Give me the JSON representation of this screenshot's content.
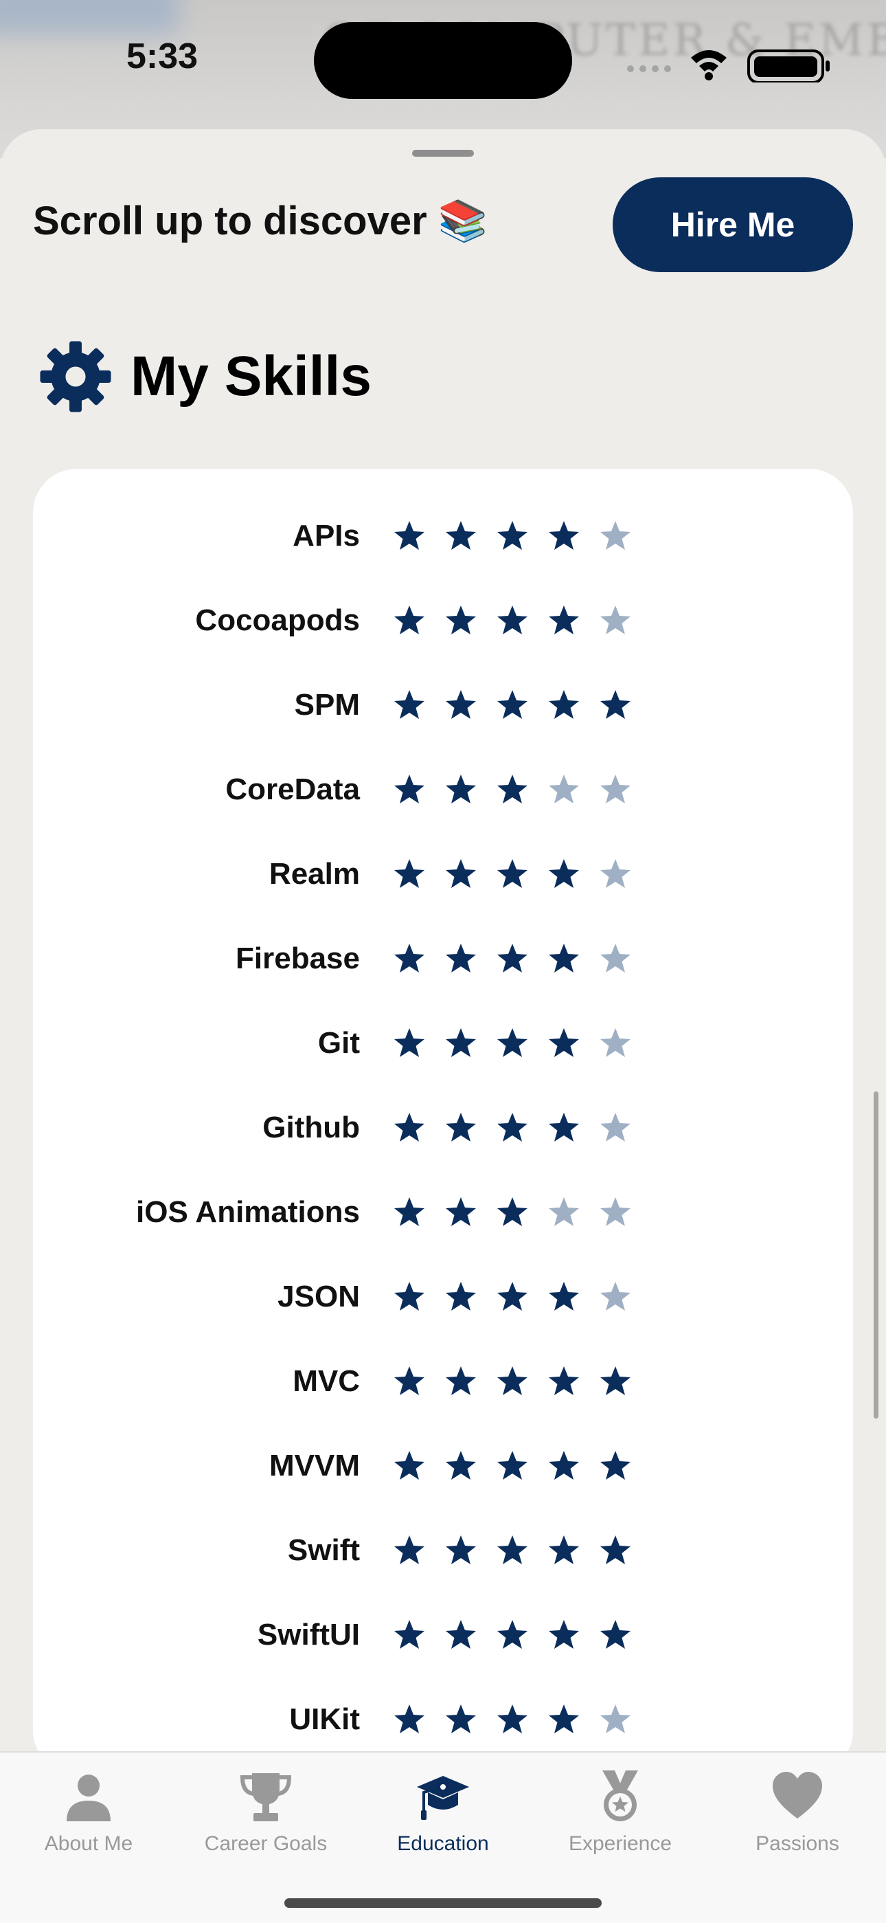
{
  "status": {
    "time": "5:33"
  },
  "backdrop": {
    "text": "OF COMPUTER & EMERGING"
  },
  "header": {
    "scroll_hint": "Scroll up to discover 📚",
    "hire_button": "Hire Me"
  },
  "section": {
    "icon": "gear-icon",
    "title": "My Skills"
  },
  "colors": {
    "accent": "#0a2d5b",
    "star_off": "#a0b0c4"
  },
  "skills": [
    {
      "name": "APIs",
      "rating": 4
    },
    {
      "name": "Cocoapods",
      "rating": 4
    },
    {
      "name": "SPM",
      "rating": 5
    },
    {
      "name": "CoreData",
      "rating": 3
    },
    {
      "name": "Realm",
      "rating": 4
    },
    {
      "name": "Firebase",
      "rating": 4
    },
    {
      "name": "Git",
      "rating": 4
    },
    {
      "name": "Github",
      "rating": 4
    },
    {
      "name": "iOS Animations",
      "rating": 3
    },
    {
      "name": "JSON",
      "rating": 4
    },
    {
      "name": "MVC",
      "rating": 5
    },
    {
      "name": "MVVM",
      "rating": 5
    },
    {
      "name": "Swift",
      "rating": 5
    },
    {
      "name": "SwiftUI",
      "rating": 5
    },
    {
      "name": "UIKit",
      "rating": 4
    }
  ],
  "tabs": [
    {
      "label": "About Me",
      "icon": "person-icon"
    },
    {
      "label": "Career Goals",
      "icon": "trophy-icon"
    },
    {
      "label": "Education",
      "icon": "graduation-cap-icon",
      "active": true
    },
    {
      "label": "Experience",
      "icon": "medal-icon"
    },
    {
      "label": "Passions",
      "icon": "heart-icon"
    }
  ]
}
